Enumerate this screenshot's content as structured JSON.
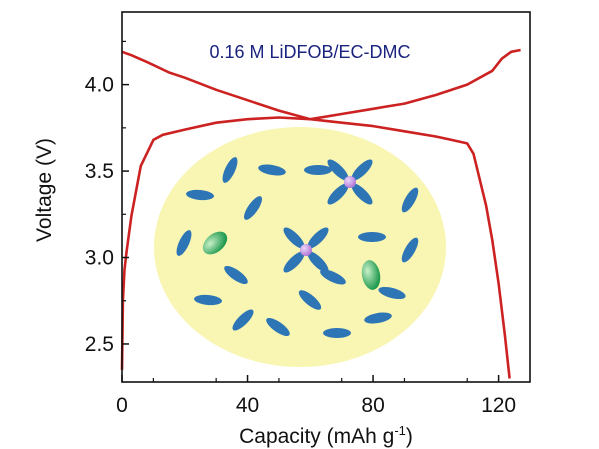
{
  "chart_data": {
    "type": "line",
    "title": "",
    "annotation": "0.16 M LiDFOB/EC-DMC",
    "xlabel": "Capacity (mAh g",
    "xlabel_sup": "-1",
    "xlabel_close": ")",
    "ylabel": "Voltage (V)",
    "xlim": [
      0,
      130
    ],
    "ylim": [
      2.28,
      4.42
    ],
    "xticks": [
      0,
      40,
      80,
      120
    ],
    "xtick_labels": [
      "0",
      "40",
      "80",
      "120"
    ],
    "yticks": [
      2.5,
      3.0,
      3.5,
      4.0
    ],
    "ytick_labels": [
      "2.5",
      "3.0",
      "3.5",
      "4.0"
    ],
    "grid": false,
    "colors": {
      "line": "#cc2222",
      "annotation": "#1a237e",
      "axis": "#111111"
    },
    "series": [
      {
        "x": [
          0,
          0.3,
          0.8,
          1.5,
          3,
          6,
          10,
          13,
          20,
          30,
          40,
          50,
          60,
          70,
          80,
          90,
          100,
          105,
          110,
          112,
          114,
          116,
          118,
          120,
          122,
          123.5
        ],
        "y": [
          2.35,
          2.75,
          2.93,
          3.04,
          3.24,
          3.53,
          3.68,
          3.71,
          3.74,
          3.78,
          3.8,
          3.81,
          3.8,
          3.78,
          3.76,
          3.73,
          3.7,
          3.68,
          3.66,
          3.6,
          3.45,
          3.3,
          3.1,
          2.85,
          2.55,
          2.3
        ]
      },
      {
        "x": [
          0,
          3,
          8,
          15,
          20,
          30,
          40,
          50,
          60,
          70,
          80,
          90,
          100,
          110,
          118,
          121,
          124,
          127
        ],
        "y": [
          4.19,
          4.17,
          4.13,
          4.07,
          4.04,
          3.97,
          3.91,
          3.85,
          3.8,
          3.83,
          3.86,
          3.89,
          3.94,
          4.0,
          4.08,
          4.15,
          4.19,
          4.2
        ]
      }
    ]
  },
  "inset": {
    "background_color": "#f8f6b2",
    "molecule_color": "#2e75b6",
    "ion_color": "#b27ad8",
    "particle_color": "#1f9a4e"
  }
}
